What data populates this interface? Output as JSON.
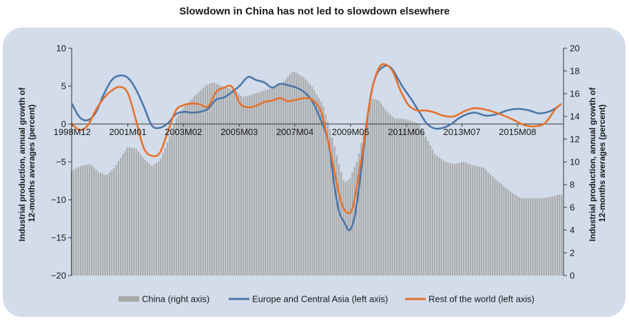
{
  "title": "Slowdown in China has not led to slowdown elsewhere",
  "chart_data": {
    "type": "line",
    "title": "Slowdown in China has not led to slowdown elsewhere",
    "ylabel_left": "Industrial production, annual growth of 12-months averages (percent)",
    "ylabel_right": "Industrial production, annual growth of 12-months averages (percent)",
    "ylim_left": [
      -20,
      10
    ],
    "ylim_right": [
      0,
      20
    ],
    "yticks_left": [
      "10",
      "5",
      "0",
      "−5",
      "−10",
      "−15",
      "−20"
    ],
    "yticks_right": [
      "20",
      "18",
      "16",
      "14",
      "12",
      "10",
      "8",
      "6",
      "4",
      "2",
      "0"
    ],
    "xlim": [
      1998.9,
      2017.3
    ],
    "x_tick_labels": [
      "1998M12",
      "2001M01",
      "2003M02",
      "2005M03",
      "2007M04",
      "2009M05",
      "2011M06",
      "2013M07",
      "2015M08"
    ],
    "x_tick_positions": [
      1998.92,
      2001.0,
      2003.08,
      2005.17,
      2007.25,
      2009.33,
      2011.42,
      2013.5,
      2015.58
    ],
    "legend_position": "bottom",
    "grid": false,
    "series": [
      {
        "name": "China (right axis)",
        "kind": "bar",
        "axis": "right",
        "color": "#a9a9a9",
        "x": [
          1998.9,
          1999.2,
          1999.6,
          1999.9,
          2000.2,
          2000.5,
          2000.8,
          2001.0,
          2001.3,
          2001.6,
          2001.9,
          2002.2,
          2002.5,
          2002.8,
          2003.1,
          2003.5,
          2003.9,
          2004.2,
          2004.6,
          2005.0,
          2005.3,
          2005.6,
          2006.0,
          2006.4,
          2006.8,
          2007.2,
          2007.6,
          2007.9,
          2008.3,
          2008.6,
          2008.9,
          2009.1,
          2009.3,
          2009.6,
          2009.9,
          2010.1,
          2010.4,
          2010.7,
          2011.0,
          2011.3,
          2011.6,
          2011.9,
          2012.2,
          2012.5,
          2012.9,
          2013.2,
          2013.6,
          2013.9,
          2014.3,
          2014.6,
          2015.0,
          2015.3,
          2015.7,
          2016.1,
          2016.5,
          2016.8,
          2017.1,
          2017.3
        ],
        "values": [
          9.2,
          9.6,
          9.8,
          9.1,
          8.8,
          9.5,
          10.6,
          11.3,
          11.2,
          10.3,
          9.6,
          10.1,
          11.8,
          13.8,
          14.8,
          15.8,
          16.7,
          17.0,
          16.6,
          16.3,
          15.7,
          15.9,
          16.2,
          16.5,
          17.0,
          18.0,
          17.4,
          16.6,
          15.0,
          12.6,
          9.8,
          8.1,
          8.5,
          10.2,
          13.5,
          15.6,
          15.4,
          14.4,
          13.8,
          13.8,
          13.6,
          13.3,
          12.0,
          10.6,
          10.0,
          9.8,
          10.0,
          9.7,
          9.5,
          8.8,
          8.0,
          7.4,
          6.8,
          6.8,
          6.8,
          6.9,
          7.1,
          7.1
        ]
      },
      {
        "name": "Europe and Central Asia (left axis)",
        "kind": "line",
        "axis": "left",
        "color": "#4a75a8",
        "x": [
          1998.92,
          1999.2,
          1999.5,
          1999.8,
          2000.1,
          2000.4,
          2000.7,
          2001.0,
          2001.3,
          2001.6,
          2001.9,
          2002.2,
          2002.5,
          2002.8,
          2003.1,
          2003.4,
          2003.7,
          2004.0,
          2004.3,
          2004.6,
          2004.9,
          2005.2,
          2005.5,
          2005.8,
          2006.1,
          2006.4,
          2006.7,
          2007.0,
          2007.3,
          2007.6,
          2007.9,
          2008.2,
          2008.5,
          2008.7,
          2008.9,
          2009.1,
          2009.3,
          2009.5,
          2009.7,
          2009.9,
          2010.1,
          2010.3,
          2010.5,
          2010.7,
          2010.9,
          2011.1,
          2011.3,
          2011.6,
          2011.9,
          2012.2,
          2012.5,
          2012.8,
          2013.1,
          2013.4,
          2013.7,
          2014.0,
          2014.4,
          2014.8,
          2015.2,
          2015.6,
          2016.0,
          2016.4,
          2016.8,
          2017.1
        ],
        "values": [
          2.6,
          0.9,
          0.5,
          1.5,
          3.9,
          5.8,
          6.4,
          6.1,
          4.6,
          2.3,
          -0.2,
          -0.5,
          0.1,
          1.3,
          1.6,
          1.5,
          1.6,
          2.0,
          3.2,
          3.5,
          4.2,
          5.1,
          6.2,
          5.8,
          5.5,
          4.8,
          5.3,
          5.1,
          4.8,
          4.2,
          3.0,
          0.7,
          -2.3,
          -7.5,
          -11.5,
          -13.0,
          -14.0,
          -12.0,
          -7.0,
          -1.0,
          4.0,
          6.5,
          7.4,
          7.7,
          7.2,
          6.0,
          4.8,
          3.3,
          1.6,
          0.0,
          -0.6,
          -0.5,
          0.0,
          0.8,
          1.3,
          1.5,
          1.1,
          1.3,
          1.8,
          2.0,
          1.8,
          1.4,
          1.7,
          2.3
        ]
      },
      {
        "name": "Rest of the world (left axis)",
        "kind": "line",
        "axis": "left",
        "color": "#e8702a",
        "x": [
          1998.92,
          1999.2,
          1999.5,
          1999.8,
          2000.1,
          2000.4,
          2000.7,
          2001.0,
          2001.3,
          2001.6,
          2001.9,
          2002.2,
          2002.5,
          2002.8,
          2003.1,
          2003.4,
          2003.7,
          2004.0,
          2004.3,
          2004.6,
          2004.9,
          2005.2,
          2005.5,
          2005.8,
          2006.1,
          2006.4,
          2006.7,
          2007.0,
          2007.3,
          2007.6,
          2007.9,
          2008.2,
          2008.4,
          2008.6,
          2008.8,
          2009.0,
          2009.2,
          2009.4,
          2009.6,
          2009.8,
          2010.0,
          2010.2,
          2010.4,
          2010.6,
          2010.9,
          2011.2,
          2011.5,
          2011.8,
          2012.1,
          2012.4,
          2012.8,
          2013.2,
          2013.6,
          2014.0,
          2014.5,
          2015.0,
          2015.4,
          2015.8,
          2016.2,
          2016.6,
          2017.0,
          2017.2
        ],
        "values": [
          0.0,
          -0.8,
          -0.2,
          1.8,
          3.4,
          4.4,
          4.9,
          4.1,
          0.6,
          -3.2,
          -4.2,
          -3.8,
          -1.0,
          1.8,
          2.5,
          2.7,
          2.6,
          2.3,
          4.2,
          4.8,
          4.9,
          2.7,
          2.2,
          2.4,
          2.9,
          3.1,
          3.4,
          3.0,
          3.2,
          3.4,
          3.2,
          1.9,
          -0.8,
          -4.0,
          -7.5,
          -10.5,
          -11.7,
          -11.2,
          -7.5,
          -3.2,
          1.8,
          5.5,
          7.4,
          7.9,
          7.0,
          4.4,
          2.5,
          1.8,
          1.8,
          1.6,
          1.1,
          1.0,
          1.7,
          2.1,
          1.8,
          1.2,
          0.6,
          -0.1,
          -0.3,
          0.1,
          2.0,
          2.6
        ]
      }
    ]
  }
}
